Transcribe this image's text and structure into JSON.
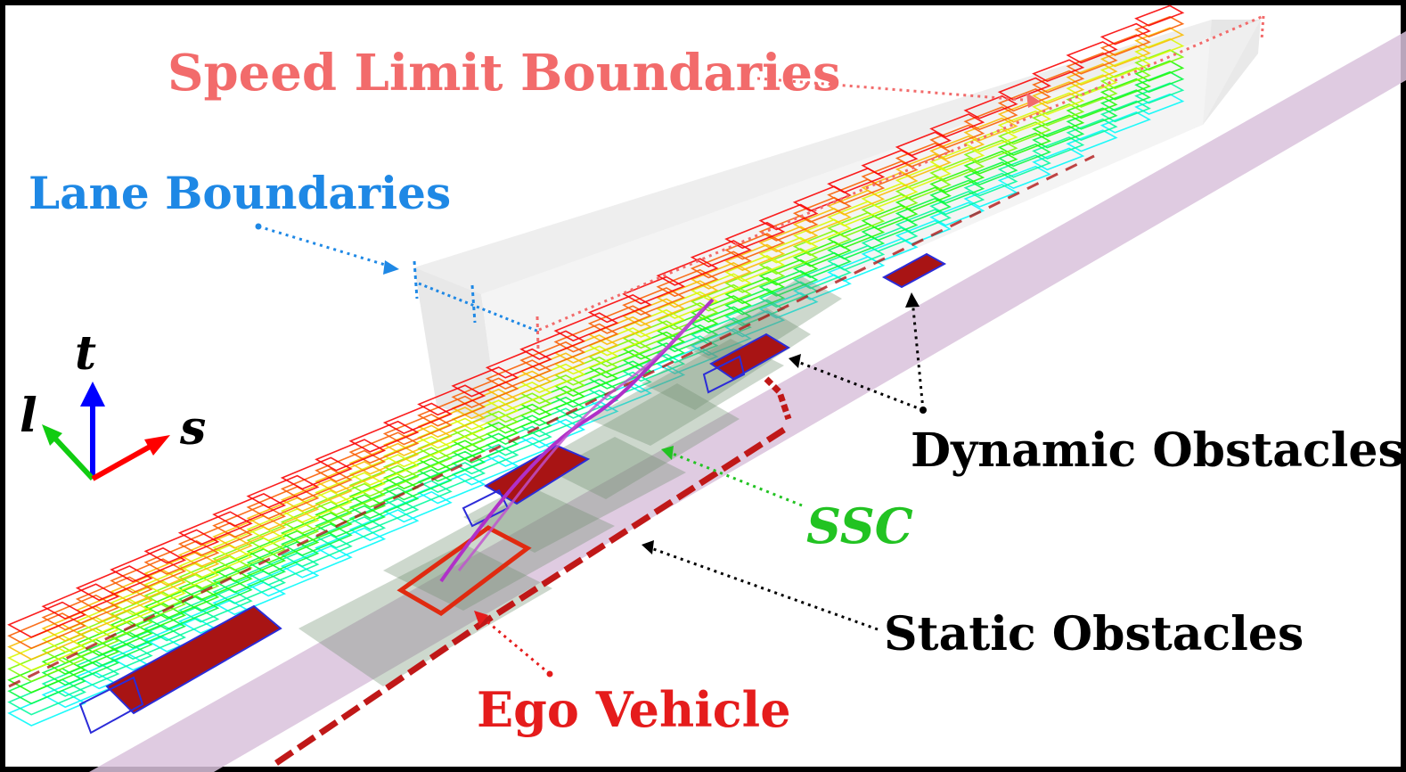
{
  "labels": {
    "speed_limit": "Speed Limit Boundaries",
    "lane": "Lane Boundaries",
    "dynamic": "Dynamic Obstacles",
    "ssc": "SSC",
    "static": "Static Obstacles",
    "ego": "Ego Vehicle"
  },
  "axes": {
    "t": "t",
    "l": "l",
    "s": "s"
  },
  "colors": {
    "speed_limit": "#f26b6b",
    "lane": "#1e88e5",
    "dynamic": "#000000",
    "ssc": "#22c322",
    "static": "#000000",
    "ego": "#e51c1c",
    "axis_t": "#0000ff",
    "axis_l": "#11cc11",
    "axis_s": "#ff0000",
    "obstacle_fill": "#b01010",
    "road_band": "#d8bfd8",
    "trajectory": "#b030c8",
    "corridor": "#7f9f7f"
  }
}
